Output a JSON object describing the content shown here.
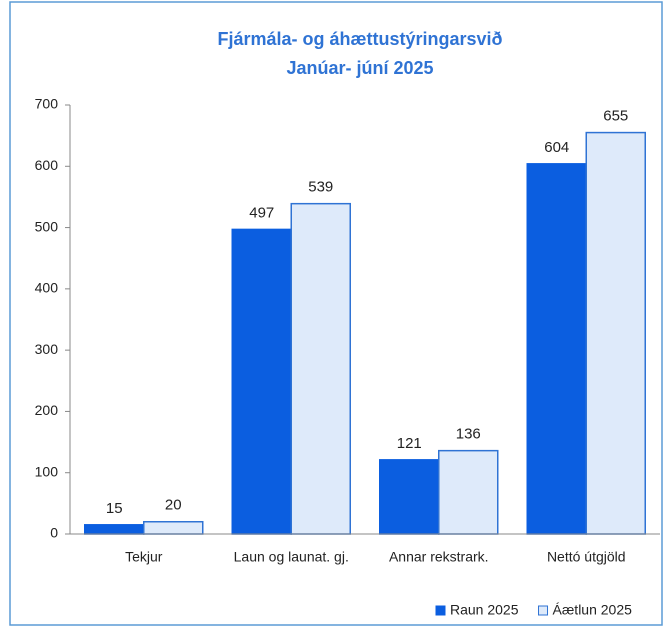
{
  "chart_data": {
    "type": "bar",
    "title": "Fjármála- og áhættustýringarsvið",
    "subtitle": "Janúar- júní 2025",
    "categories": [
      "Tekjur",
      "Laun og launat. gj.",
      "Annar rekstrark.",
      "Nettó útgjöld"
    ],
    "series": [
      {
        "name": "Raun 2025",
        "color": "#0b5ee0",
        "edgecolor": "#0b5ee0",
        "values": [
          15,
          497,
          121,
          604
        ]
      },
      {
        "name": "Áætlun 2025",
        "color": "#deeafa",
        "edgecolor": "#2f73d4",
        "values": [
          20,
          539,
          136,
          655
        ]
      }
    ],
    "ylim": [
      0,
      700
    ],
    "yticks": [
      0,
      100,
      200,
      300,
      400,
      500,
      600,
      700
    ],
    "grid": false,
    "legend": "lower right"
  }
}
